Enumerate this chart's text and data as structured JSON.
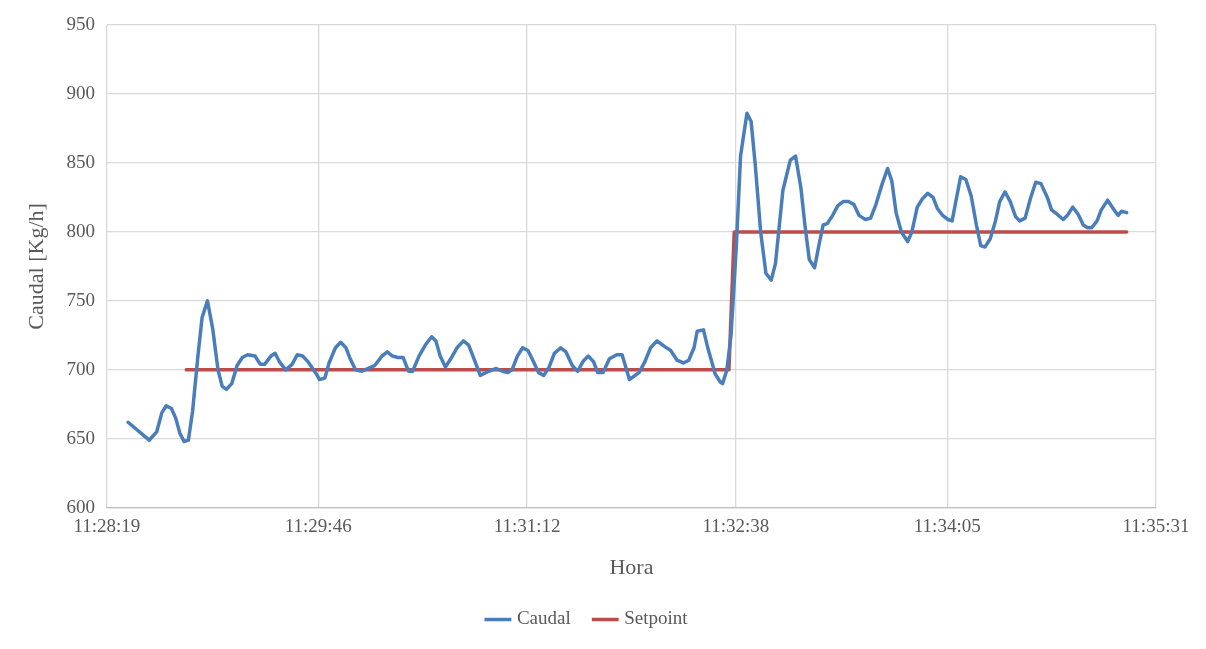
{
  "chart_data": {
    "type": "line",
    "xlabel": "Hora",
    "ylabel": "Caudal [Kg/h]",
    "xlim": [
      11.47194,
      11.59194
    ],
    "xticks": [
      {
        "value": 11.47194,
        "label": "11:28:19"
      },
      {
        "value": 11.49611,
        "label": "11:29:46"
      },
      {
        "value": 11.52,
        "label": "11:31:12"
      },
      {
        "value": 11.54389,
        "label": "11:32:38"
      },
      {
        "value": 11.56806,
        "label": "11:34:05"
      },
      {
        "value": 11.59194,
        "label": "11:35:31"
      }
    ],
    "ylim": [
      600,
      950
    ],
    "yticks": [
      600,
      650,
      700,
      750,
      800,
      850,
      900,
      950
    ],
    "grid": true,
    "legend": "bottom",
    "marker": "none",
    "line_style": "solid",
    "series": [
      {
        "name": "Caudal",
        "color": "#4a7ebb",
        "x": [
          11.47436,
          11.47678,
          11.47763,
          11.47823,
          11.47872,
          11.47932,
          11.47981,
          11.48029,
          11.48077,
          11.48126,
          11.48174,
          11.48235,
          11.48283,
          11.48344,
          11.48404,
          11.48465,
          11.48513,
          11.48561,
          11.48622,
          11.48682,
          11.48743,
          11.48803,
          11.48888,
          11.48949,
          11.48997,
          11.4907,
          11.49118,
          11.49166,
          11.49239,
          11.49312,
          11.49372,
          11.49433,
          11.49493,
          11.4959,
          11.49626,
          11.49687,
          11.49735,
          11.49808,
          11.49868,
          11.49929,
          11.49977,
          11.50038,
          11.5011,
          11.50183,
          11.50255,
          11.5034,
          11.50401,
          11.50461,
          11.50522,
          11.50582,
          11.50643,
          11.50691,
          11.50764,
          11.50836,
          11.50909,
          11.50957,
          11.51006,
          11.51066,
          11.51127,
          11.51199,
          11.51272,
          11.51332,
          11.51393,
          11.51465,
          11.51562,
          11.51647,
          11.51719,
          11.5178,
          11.51828,
          11.51889,
          11.51949,
          11.5201,
          11.52058,
          11.52131,
          11.52191,
          11.52252,
          11.52312,
          11.52385,
          11.52445,
          11.52518,
          11.52579,
          11.52639,
          11.527,
          11.5276,
          11.52808,
          11.52869,
          11.52942,
          11.53026,
          11.53087,
          11.53171,
          11.5328,
          11.53341,
          11.53413,
          11.53486,
          11.53571,
          11.53643,
          11.53716,
          11.53789,
          11.53849,
          11.5391,
          11.53946,
          11.54018,
          11.54067,
          11.54152,
          11.54212,
          11.54236,
          11.54285,
          11.54333,
          11.54394,
          11.54442,
          11.54515,
          11.54563,
          11.54611,
          11.54672,
          11.54732,
          11.54793,
          11.54841,
          11.54878,
          11.54926,
          11.55011,
          11.55071,
          11.55132,
          11.5518,
          11.55228,
          11.55289,
          11.55337,
          11.55386,
          11.55434,
          11.55495,
          11.55555,
          11.55616,
          11.55676,
          11.55737,
          11.55797,
          11.5587,
          11.5593,
          11.55991,
          11.56063,
          11.56124,
          11.56172,
          11.56221,
          11.56281,
          11.56354,
          11.56402,
          11.56463,
          11.56523,
          11.56584,
          11.56644,
          11.56693,
          11.56753,
          11.56814,
          11.56862,
          11.56959,
          11.57019,
          11.5708,
          11.5714,
          11.57189,
          11.57237,
          11.57298,
          11.57358,
          11.57406,
          11.57467,
          11.57527,
          11.57588,
          11.57636,
          11.57697,
          11.57757,
          11.57818,
          11.57878,
          11.57951,
          11.57999,
          11.5806,
          11.58132,
          11.58181,
          11.58241,
          11.58302,
          11.58362,
          11.58411,
          11.58459,
          11.5852,
          11.58568,
          11.58641,
          11.58725,
          11.58762,
          11.58798,
          11.58858
        ],
        "values": [
          662,
          649,
          655,
          669,
          674,
          672,
          665,
          654,
          648,
          649,
          670,
          710,
          738,
          750,
          730,
          700,
          688,
          686,
          690,
          703,
          709,
          711,
          710,
          704,
          704,
          710,
          712,
          706,
          700,
          704,
          711,
          710,
          706,
          697,
          693,
          694,
          705,
          716,
          720,
          716,
          708,
          700,
          699,
          701,
          703,
          710,
          713,
          710,
          709,
          709,
          699,
          699,
          710,
          718,
          724,
          721,
          710,
          702,
          708,
          716,
          721,
          718,
          708,
          696,
          699,
          701,
          699,
          698,
          700,
          710,
          716,
          714,
          708,
          698,
          696,
          702,
          712,
          716,
          713,
          703,
          699,
          706,
          710,
          706,
          698,
          698,
          708,
          711,
          711,
          693,
          698,
          705,
          716,
          721,
          717,
          714,
          707,
          705,
          707,
          716,
          728,
          729,
          716,
          697,
          691,
          690,
          700,
          725,
          790,
          855,
          886,
          880,
          848,
          800,
          770,
          765,
          777,
          800,
          830,
          852,
          855,
          832,
          804,
          780,
          774,
          790,
          805,
          806,
          812,
          819,
          822,
          822,
          820,
          812,
          809,
          810,
          820,
          835,
          846,
          837,
          814,
          800,
          793,
          800,
          818,
          824,
          828,
          825,
          817,
          812,
          809,
          808,
          840,
          838,
          826,
          805,
          790,
          789,
          795,
          808,
          822,
          829,
          822,
          811,
          808,
          810,
          824,
          836,
          835,
          825,
          816,
          813,
          809,
          812,
          818,
          813,
          805,
          803,
          803,
          808,
          816,
          823,
          815,
          812,
          815,
          814
        ]
      },
      {
        "name": "Setpoint",
        "color": "#be4b48",
        "x": [
          11.48102,
          11.54309,
          11.5437,
          11.58858
        ],
        "values": [
          700,
          700,
          800,
          800
        ]
      }
    ]
  }
}
